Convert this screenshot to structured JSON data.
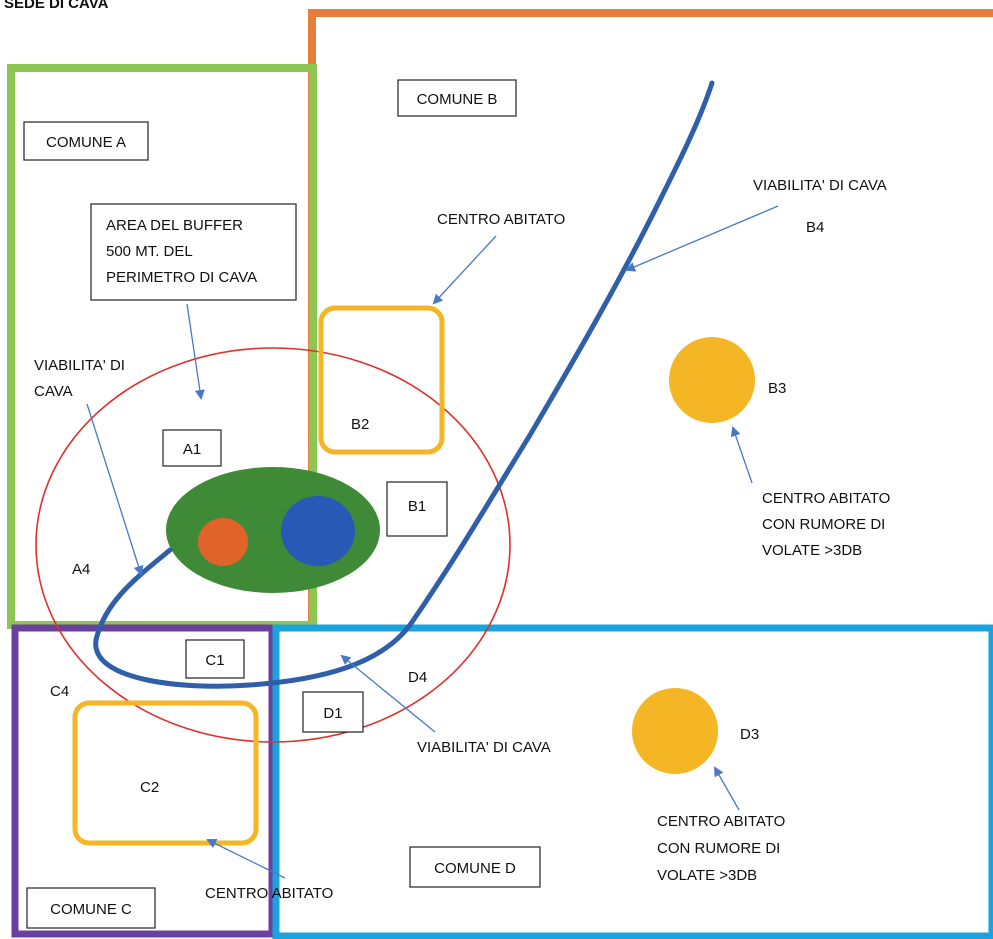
{
  "colors": {
    "comune_a": "#8cc653",
    "comune_b": "#e87c3a",
    "comune_c": "#6a3fa0",
    "comune_d": "#1ba3de",
    "buffer": "#e0302b",
    "cava_area": "#3f8a36",
    "cava_orange": "#e0642a",
    "cava_blue": "#2759b5",
    "centro_abitato": "#f5b625",
    "road": "#2f5fa8",
    "arrow": "#4a79c4"
  },
  "header": {
    "title": "SEDE DI CAVA"
  },
  "comuni": {
    "a": "COMUNE A",
    "b": "COMUNE B",
    "c": "COMUNE C",
    "d": "COMUNE D"
  },
  "buffer_label": [
    "AREA DEL BUFFER",
    "500 MT. DEL",
    "PERIMETRO DI CAVA"
  ],
  "zones": {
    "a1": "A1",
    "a4": "A4",
    "b1": "B1",
    "b2": "B2",
    "b3": "B3",
    "b4": "B4",
    "c1": "C1",
    "c2": "C2",
    "c4": "C4",
    "d1": "D1",
    "d3": "D3",
    "d4": "D4"
  },
  "notes": {
    "viabilita_a": [
      "VIABILITA' DI",
      "CAVA"
    ],
    "viabilita_b": "VIABILITA' DI CAVA",
    "viabilita_d": "VIABILITA' DI CAVA",
    "centro_b": "CENTRO ABITATO",
    "centro_c": "CENTRO ABITATO",
    "centro_rumore_b": [
      "CENTRO ABITATO",
      "CON RUMORE DI",
      "VOLATE >3DB"
    ],
    "centro_rumore_d": [
      "CENTRO ABITATO",
      "CON RUMORE DI",
      "VOLATE >3DB"
    ]
  },
  "icons": {
    "arrow": "arrow-icon"
  }
}
